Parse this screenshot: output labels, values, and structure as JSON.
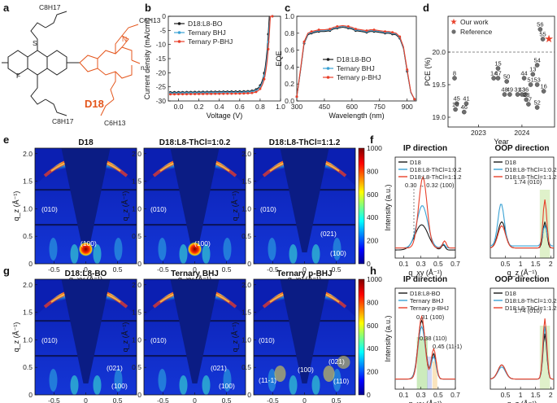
{
  "panel_labels": {
    "a": "a",
    "b": "b",
    "c": "c",
    "d": "d",
    "e": "e",
    "f": "f",
    "g": "g",
    "h": "h"
  },
  "panel_a": {
    "polymer_name": "D18",
    "side_chain": "C8H17",
    "side_chain_2": "C6H13",
    "sub_F": "F",
    "sub_S": "S",
    "sub_N": "N",
    "repeat": "n"
  },
  "chart_data": [
    {
      "id": "b",
      "type": "line",
      "title": "",
      "xlabel": "Voltage (V)",
      "ylabel": "Current density (mA/cm²)",
      "xlim": [
        -0.1,
        1.0
      ],
      "ylim": [
        -30,
        0
      ],
      "xticks": [
        "0.0",
        "0.2",
        "0.4",
        "0.6",
        "0.8",
        "1.0"
      ],
      "yticks": [
        "0",
        "-5",
        "-10",
        "-15",
        "-20",
        "-25",
        "-30"
      ],
      "series": [
        {
          "name": "D18:L8-BO",
          "color": "#1a1a1a",
          "jsc": -26.9,
          "voc": 0.89
        },
        {
          "name": "Ternary BHJ",
          "color": "#3aa2d4",
          "jsc": -27.2,
          "voc": 0.895
        },
        {
          "name": "Ternary P-BHJ",
          "color": "#e8402a",
          "jsc": -27.6,
          "voc": 0.9
        }
      ]
    },
    {
      "id": "c",
      "type": "line",
      "xlabel": "Wavelength (nm)",
      "ylabel": "EQE",
      "xlim": [
        300,
        950
      ],
      "ylim": [
        0,
        1.0
      ],
      "xticks": [
        "300",
        "450",
        "600",
        "750",
        "900"
      ],
      "yticks": [
        "0.0",
        "0.2",
        "0.4",
        "0.6",
        "0.8",
        "1.0"
      ],
      "x": [
        300,
        320,
        340,
        360,
        380,
        400,
        420,
        450,
        480,
        500,
        520,
        550,
        580,
        600,
        620,
        650,
        680,
        700,
        720,
        750,
        780,
        800,
        820,
        840,
        860,
        880,
        900,
        920,
        940
      ],
      "series": [
        {
          "name": "D18:L8-BO",
          "color": "#1a1a1a",
          "values": [
            0.05,
            0.35,
            0.68,
            0.78,
            0.8,
            0.81,
            0.82,
            0.82,
            0.83,
            0.85,
            0.86,
            0.87,
            0.86,
            0.85,
            0.83,
            0.82,
            0.81,
            0.82,
            0.82,
            0.81,
            0.8,
            0.8,
            0.79,
            0.78,
            0.74,
            0.62,
            0.35,
            0.1,
            0.02
          ]
        },
        {
          "name": "Ternary BHJ",
          "color": "#3aa2d4",
          "values": [
            0.05,
            0.36,
            0.69,
            0.79,
            0.81,
            0.82,
            0.83,
            0.83,
            0.84,
            0.86,
            0.87,
            0.88,
            0.87,
            0.86,
            0.84,
            0.83,
            0.82,
            0.83,
            0.83,
            0.82,
            0.81,
            0.81,
            0.8,
            0.79,
            0.75,
            0.63,
            0.36,
            0.1,
            0.02
          ]
        },
        {
          "name": "Ternary p-BHJ",
          "color": "#e8402a",
          "values": [
            0.05,
            0.37,
            0.7,
            0.8,
            0.82,
            0.83,
            0.84,
            0.84,
            0.85,
            0.87,
            0.88,
            0.89,
            0.88,
            0.87,
            0.85,
            0.84,
            0.83,
            0.84,
            0.84,
            0.83,
            0.82,
            0.82,
            0.81,
            0.8,
            0.76,
            0.64,
            0.37,
            0.11,
            0.02
          ]
        }
      ]
    },
    {
      "id": "d",
      "type": "scatter",
      "xlabel": "Year",
      "ylabel": "PCE (%)",
      "ylim": [
        18.85,
        20.55
      ],
      "yticks": [
        "19.0",
        "19.5",
        "20.0"
      ],
      "xticks": [
        "2023",
        "2024"
      ],
      "reference_line": 20.0,
      "legend": [
        "Our work",
        "Reference"
      ],
      "points": [
        {
          "label": "8",
          "x": 2022.45,
          "y": 19.6
        },
        {
          "label": "45",
          "x": 2022.5,
          "y": 19.21
        },
        {
          "label": "41",
          "x": 2022.72,
          "y": 19.21
        },
        {
          "label": "10",
          "x": 2022.47,
          "y": 19.12
        },
        {
          "label": "46",
          "x": 2022.67,
          "y": 19.08
        },
        {
          "label": "15",
          "x": 2023.45,
          "y": 19.75
        },
        {
          "label": "14",
          "x": 2023.35,
          "y": 19.6
        },
        {
          "label": "47",
          "x": 2023.45,
          "y": 19.6
        },
        {
          "label": "50",
          "x": 2023.65,
          "y": 19.55
        },
        {
          "label": "48",
          "x": 2023.6,
          "y": 19.35
        },
        {
          "label": "49",
          "x": 2023.72,
          "y": 19.35
        },
        {
          "label": "31",
          "x": 2023.9,
          "y": 19.35
        },
        {
          "label": "17",
          "x": 2024.15,
          "y": 19.2
        },
        {
          "label": "43",
          "x": 2024.0,
          "y": 19.35
        },
        {
          "label": "36",
          "x": 2024.08,
          "y": 19.35
        },
        {
          "label": "23",
          "x": 2024.1,
          "y": 19.27
        },
        {
          "label": "44",
          "x": 2024.05,
          "y": 19.6
        },
        {
          "label": "13",
          "x": 2024.25,
          "y": 19.66
        },
        {
          "label": "54",
          "x": 2024.35,
          "y": 19.8
        },
        {
          "label": "51",
          "x": 2024.2,
          "y": 19.5
        },
        {
          "label": "53",
          "x": 2024.35,
          "y": 19.5
        },
        {
          "label": "16",
          "x": 2024.5,
          "y": 19.4
        },
        {
          "label": "52",
          "x": 2024.35,
          "y": 19.15
        },
        {
          "label": "56",
          "x": 2024.42,
          "y": 20.35
        },
        {
          "label": "55",
          "x": 2024.48,
          "y": 20.2
        }
      ],
      "our_work": {
        "label": "Our work",
        "x": 2024.62,
        "y": 20.2
      }
    },
    {
      "id": "f-ip",
      "type": "line",
      "title": "IP direction",
      "xlabel": "q_xy (Å⁻¹)",
      "ylabel": "Intensity (a.u.)",
      "xlim": [
        0,
        0.7
      ],
      "xticks": [
        "0.1",
        "0.3",
        "0.5",
        "0.7"
      ],
      "annotation": "0.30 → 0.32 (100)",
      "series": [
        {
          "name": "D18",
          "color": "#1a1a1a",
          "peak_q": 0.3,
          "peak": 0.25
        },
        {
          "name": "D18:L8-ThCl=1:0.2",
          "color": "#3aa2d4",
          "peak_q": 0.31,
          "peak": 0.42
        },
        {
          "name": "D18:L8-ThCl=1:1.2",
          "color": "#e8402a",
          "peak_q": 0.32,
          "peak": 0.7
        }
      ]
    },
    {
      "id": "f-oop",
      "type": "line",
      "title": "OOP direction",
      "xlabel": "q_z (Å⁻¹)",
      "ylabel": "",
      "xlim": [
        0,
        2.1
      ],
      "xticks": [
        "0.5",
        "1",
        "1.5",
        "2"
      ],
      "annotation": "1.74 (010)",
      "series": [
        {
          "name": "D18",
          "color": "#1a1a1a"
        },
        {
          "name": "D18:L8-ThCl=1:0.2",
          "color": "#3aa2d4"
        },
        {
          "name": "D18:L8-ThCl=1:1.2",
          "color": "#e8402a"
        }
      ]
    },
    {
      "id": "h-ip",
      "type": "line",
      "title": "IP direction",
      "xlabel": "q_xy (Å⁻¹)",
      "ylabel": "Intensity (a.u.)",
      "xlim": [
        0,
        0.7
      ],
      "xticks": [
        "0.1",
        "0.3",
        "0.5",
        "0.7"
      ],
      "annotations": [
        "0.31 (100)",
        "0.38 (110)",
        "0.45 (11-1)"
      ],
      "series": [
        {
          "name": "D18:L8-BO",
          "color": "#1a1a1a"
        },
        {
          "name": "Ternary BHJ",
          "color": "#3aa2d4"
        },
        {
          "name": "Ternary p-BHJ",
          "color": "#e8402a"
        }
      ]
    },
    {
      "id": "h-oop",
      "type": "line",
      "title": "OOP direction",
      "xlabel": "q_z (Å⁻¹)",
      "ylabel": "",
      "xlim": [
        0,
        2.1
      ],
      "xticks": [
        "0.5",
        "1",
        "1.5",
        "2"
      ],
      "annotation": "1.74 (010)",
      "series": [
        {
          "name": "D18",
          "color": "#1a1a1a"
        },
        {
          "name": "D18:L8-ThCl=1:0.2",
          "color": "#3aa2d4"
        },
        {
          "name": "D18:L8-ThCl=1:1.2",
          "color": "#e8402a"
        }
      ]
    },
    {
      "id": "e",
      "type": "heatmap",
      "titles": [
        "D18",
        "D18:L8-ThCl=1:0.2",
        "D18:L8-ThCl=1:1.2"
      ],
      "labels": [
        [
          "(010)",
          "(100)"
        ],
        [
          "(010)",
          "(100)"
        ],
        [
          "(010)",
          "(021)",
          "(100)"
        ]
      ],
      "xlabel": "q_xy (Å⁻¹)",
      "ylabel": "q_z (Å⁻¹)",
      "xticks": [
        "-0.5",
        "0",
        "0.5"
      ],
      "yticks": [
        "0",
        "0.5",
        "1.0",
        "1.5",
        "2.0"
      ],
      "colorbar": [
        "0",
        "200",
        "400",
        "600",
        "800",
        "1000"
      ]
    },
    {
      "id": "g",
      "type": "heatmap",
      "titles": [
        "D18:L8-BO",
        "Ternary BHJ",
        "Ternary p-BHJ"
      ],
      "labels": [
        [
          "(010)",
          "(021)",
          "(100)"
        ],
        [
          "(010)",
          "(021)",
          "(100)"
        ],
        [
          "(010)",
          "(11-1)",
          "(100)",
          "(021)",
          "(110)"
        ]
      ],
      "xlabel": "q_xy (Å⁻¹)",
      "ylabel": "q_z (Å⁻¹)",
      "xticks": [
        "-0.5",
        "0",
        "0.5"
      ],
      "yticks": [
        "0",
        "0.5",
        "1.0",
        "1.5",
        "2.0"
      ],
      "colorbar": [
        "0",
        "200",
        "400",
        "600",
        "800",
        "1000"
      ]
    }
  ]
}
